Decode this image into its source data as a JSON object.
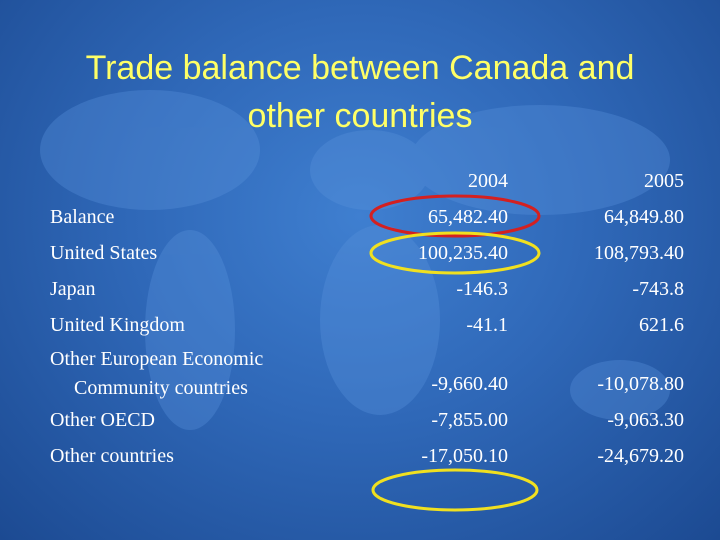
{
  "header": {
    "title": "Trade balance between Canada and other countries"
  },
  "table": {
    "columns": [
      "2004",
      "2005"
    ],
    "rows": [
      [
        "Balance",
        "65,482.40",
        "64,849.80"
      ],
      [
        "United States",
        "100,235.40",
        "108,793.40"
      ],
      [
        "Japan",
        "-146.3",
        "-743.8"
      ],
      [
        "United Kingdom",
        "-41.1",
        "621.6"
      ],
      [
        "Other European Economic Community countries",
        "-9,660.40",
        "-10,078.80"
      ],
      [
        "Other OECD",
        "-7,855.00",
        "-9,063.30"
      ],
      [
        "Other countries",
        "-17,050.10",
        "-24,679.20"
      ]
    ]
  }
}
